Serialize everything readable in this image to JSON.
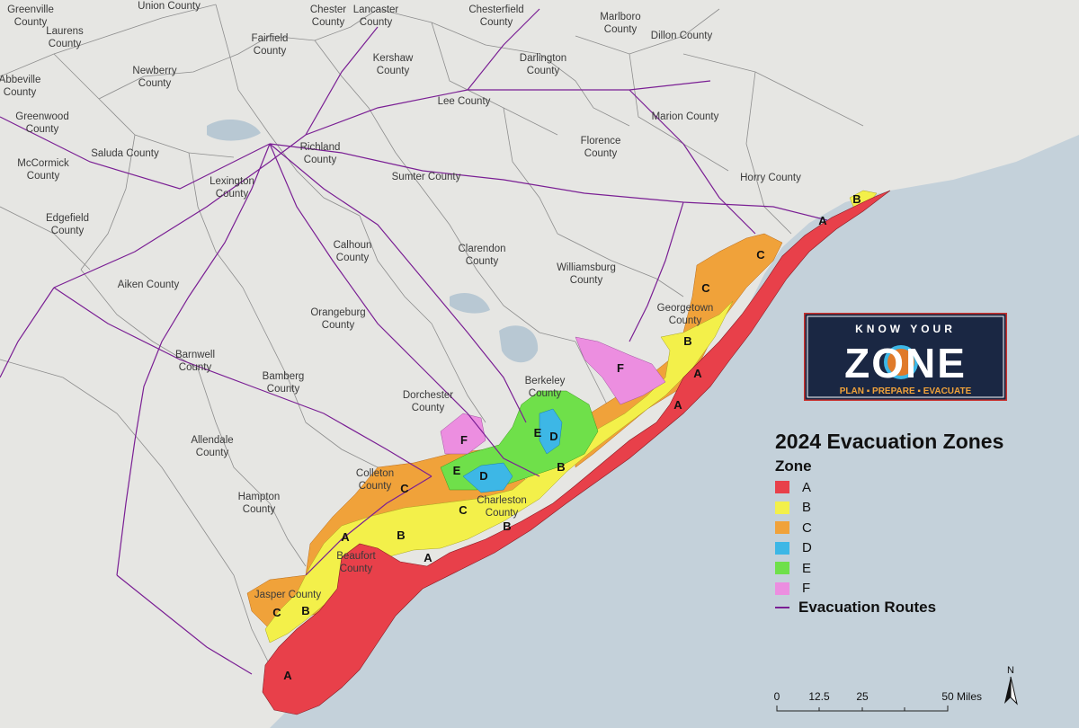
{
  "map": {
    "title": "2024 Evacuation Zones",
    "counties": [
      {
        "name": "Greenville County",
        "lines": [
          "Greenville",
          "County"
        ]
      },
      {
        "name": "Union County",
        "lines": [
          "Union County"
        ]
      },
      {
        "name": "Chester County",
        "lines": [
          "Chester",
          "County"
        ]
      },
      {
        "name": "Lancaster County",
        "lines": [
          "Lancaster",
          "County"
        ]
      },
      {
        "name": "Chesterfield County",
        "lines": [
          "Chesterfield",
          "County"
        ]
      },
      {
        "name": "Marlboro County",
        "lines": [
          "Marlboro",
          "County"
        ]
      },
      {
        "name": "Dillon County",
        "lines": [
          "Dillon County"
        ]
      },
      {
        "name": "Laurens County",
        "lines": [
          "Laurens",
          "County"
        ]
      },
      {
        "name": "Fairfield County",
        "lines": [
          "Fairfield",
          "County"
        ]
      },
      {
        "name": "Kershaw County",
        "lines": [
          "Kershaw",
          "County"
        ]
      },
      {
        "name": "Darlington County",
        "lines": [
          "Darlington",
          "County"
        ]
      },
      {
        "name": "Newberry County",
        "lines": [
          "Newberry",
          "County"
        ]
      },
      {
        "name": "Abbeville County",
        "lines": [
          "Abbeville",
          "County"
        ]
      },
      {
        "name": "Lee County",
        "lines": [
          "Lee County"
        ]
      },
      {
        "name": "Marion County",
        "lines": [
          "Marion County"
        ]
      },
      {
        "name": "Greenwood County",
        "lines": [
          "Greenwood",
          "County"
        ]
      },
      {
        "name": "Richland County",
        "lines": [
          "Richland",
          "County"
        ]
      },
      {
        "name": "Florence County",
        "lines": [
          "Florence",
          "County"
        ]
      },
      {
        "name": "McCormick County",
        "lines": [
          "McCormick",
          "County"
        ]
      },
      {
        "name": "Saluda County",
        "lines": [
          "Saluda County"
        ]
      },
      {
        "name": "Lexington County",
        "lines": [
          "Lexington",
          "County"
        ]
      },
      {
        "name": "Sumter County",
        "lines": [
          "Sumter County"
        ]
      },
      {
        "name": "Horry County",
        "lines": [
          "Horry County"
        ]
      },
      {
        "name": "Edgefield County",
        "lines": [
          "Edgefield",
          "County"
        ]
      },
      {
        "name": "Calhoun County",
        "lines": [
          "Calhoun",
          "County"
        ]
      },
      {
        "name": "Clarendon County",
        "lines": [
          "Clarendon",
          "County"
        ]
      },
      {
        "name": "Williamsburg County",
        "lines": [
          "Williamsburg",
          "County"
        ]
      },
      {
        "name": "Aiken County",
        "lines": [
          "Aiken County"
        ]
      },
      {
        "name": "Orangeburg County",
        "lines": [
          "Orangeburg",
          "County"
        ]
      },
      {
        "name": "Georgetown County",
        "lines": [
          "Georgetown",
          "County"
        ]
      },
      {
        "name": "Barnwell County",
        "lines": [
          "Barnwell",
          "County"
        ]
      },
      {
        "name": "Bamberg County",
        "lines": [
          "Bamberg",
          "County"
        ]
      },
      {
        "name": "Berkeley County",
        "lines": [
          "Berkeley",
          "County"
        ]
      },
      {
        "name": "Dorchester County",
        "lines": [
          "Dorchester",
          "County"
        ]
      },
      {
        "name": "Allendale County",
        "lines": [
          "Allendale",
          "County"
        ]
      },
      {
        "name": "Colleton County",
        "lines": [
          "Colleton",
          "County"
        ]
      },
      {
        "name": "Hampton County",
        "lines": [
          "Hampton",
          "County"
        ]
      },
      {
        "name": "Charleston County",
        "lines": [
          "Charleston",
          "County"
        ]
      },
      {
        "name": "Beaufort County",
        "lines": [
          "Beaufort",
          "County"
        ]
      },
      {
        "name": "Jasper County",
        "lines": [
          "Jasper County"
        ]
      }
    ],
    "zone_labels": [
      "B",
      "A",
      "C",
      "C",
      "B",
      "A",
      "F",
      "A",
      "E",
      "D",
      "F",
      "B",
      "E",
      "D",
      "C",
      "C",
      "B",
      "B",
      "A",
      "A",
      "B",
      "C",
      "A"
    ]
  },
  "legend": {
    "heading": "Zone",
    "zones": [
      {
        "label": "A",
        "color": "#e8404a"
      },
      {
        "label": "B",
        "color": "#f3f04a"
      },
      {
        "label": "C",
        "color": "#f0a23a"
      },
      {
        "label": "D",
        "color": "#3db7e6"
      },
      {
        "label": "E",
        "color": "#6fe04a"
      },
      {
        "label": "F",
        "color": "#ec8ee0"
      }
    ],
    "routes_label": "Evacuation Routes",
    "route_color": "#7a1f94"
  },
  "logo": {
    "line1": "KNOW YOUR",
    "line2": "ZONE",
    "line3": "PLAN ▪ PREPARE ▪ EVACUATE"
  },
  "scale_bar": {
    "ticks": [
      "0",
      "12.5",
      "25",
      "50"
    ],
    "unit": "Miles"
  },
  "north_arrow": {
    "label": "N"
  },
  "colors": {
    "ocean": "#c4d1da",
    "land": "#e6e6e3",
    "county_border": "#8d8d8d"
  }
}
